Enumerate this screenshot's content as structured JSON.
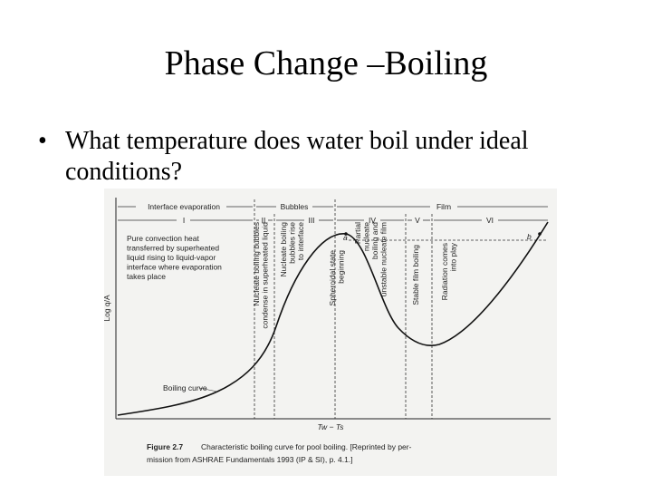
{
  "title": "Phase Change –Boiling",
  "bullet": {
    "marker": "•",
    "lines": [
      "What temperature does water boil under ideal",
      "conditions?"
    ]
  },
  "figure": {
    "headers": [
      "Interface evaporation",
      "Bubbles",
      "Film"
    ],
    "regions": [
      "I",
      "II",
      "III",
      "IV",
      "V",
      "VI"
    ],
    "region_notes": {
      "I": [
        "Pure convection heat",
        "transferred by superheated",
        "liquid rising to liquid-vapor",
        "interface where evaporation",
        "takes place"
      ],
      "II": [
        "Nucleate boiling bubbles",
        "condense in superheated liquid"
      ],
      "III": [
        "Nucleate boiling",
        "bubbles rise",
        "to interface"
      ],
      "spheroidal": [
        "Spheroidal state",
        "beginning"
      ],
      "IV": [
        "Partial",
        "nucleate",
        "boiling and",
        "unstable nucleate film"
      ],
      "V": [
        "Stable film boiling"
      ],
      "VI": [
        "Radiation comes",
        "into play"
      ]
    },
    "point_labels": [
      "a",
      "b"
    ],
    "curve_label": "Boiling curve",
    "y_axis_label": "Log q/A",
    "x_axis_label": "Tw − Ts",
    "caption": {
      "label": "Figure 2.7",
      "lines": [
        "Characteristic boiling curve for pool boiling. [Reprinted by per-",
        "mission from ASHRAE Fundamentals 1993 (IP & SI), p. 4.1.]"
      ]
    }
  }
}
